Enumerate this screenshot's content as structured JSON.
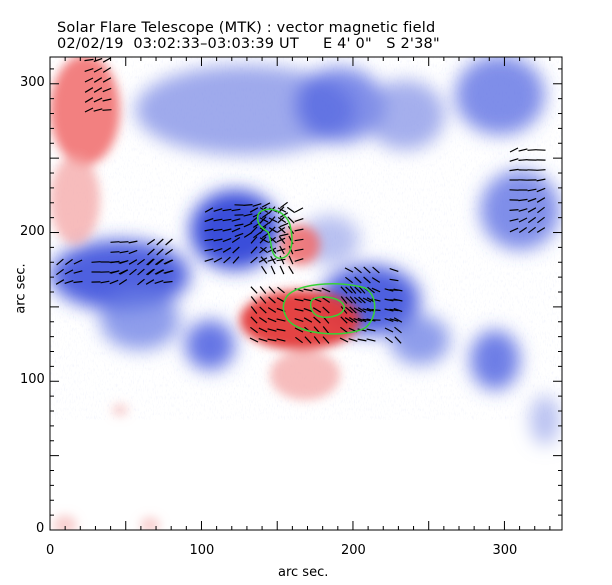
{
  "header": {
    "title_line1": "Solar Flare Telescope (MTK) : vector magnetic field",
    "title_line2": "02/02/19  03:02:33–03:03:39 UT     E 4' 0\"   S 2'38\""
  },
  "axes": {
    "xlabel": "arc sec.",
    "ylabel": "arc sec.",
    "xlim": [
      0,
      338
    ],
    "ylim": [
      0,
      318
    ],
    "x_ticks": [
      0,
      100,
      200,
      300
    ],
    "y_ticks": [
      0,
      100,
      200,
      300
    ]
  },
  "colors": {
    "positive_polarity": "#e63c3c",
    "negative_polarity": "#3c50dc",
    "contour": "#36d236",
    "vectors": "#000000"
  },
  "image": {
    "content": "vector magnetogram: red/blue longitudinal field, black transverse-field vectors, green contours"
  }
}
